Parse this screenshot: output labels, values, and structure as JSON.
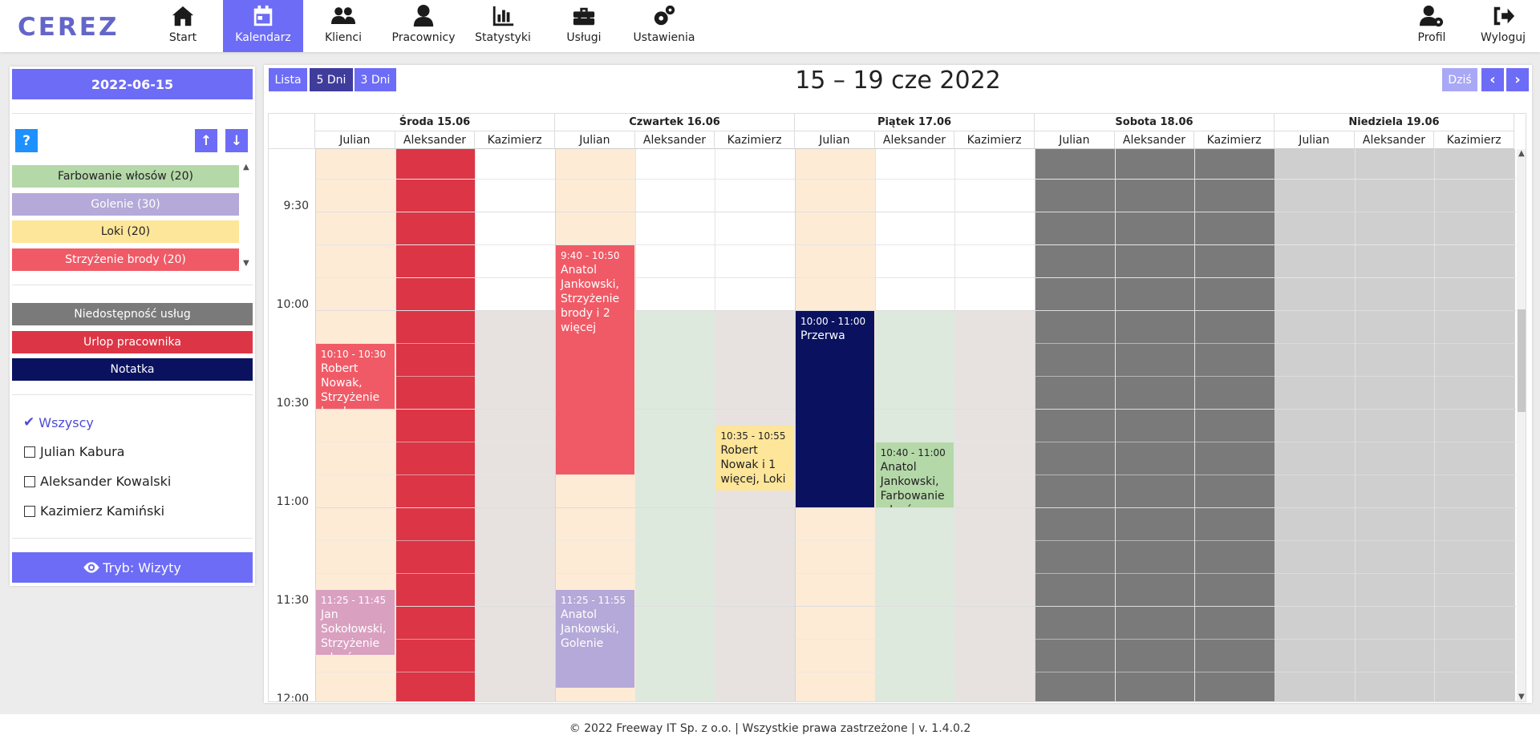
{
  "app": {
    "logo": "CEREZ"
  },
  "nav": {
    "items": [
      {
        "label": "Start",
        "icon": "home-icon"
      },
      {
        "label": "Kalendarz",
        "icon": "calendar-icon"
      },
      {
        "label": "Klienci",
        "icon": "users-icon"
      },
      {
        "label": "Pracownicy",
        "icon": "user-icon"
      },
      {
        "label": "Statystyki",
        "icon": "chart-icon"
      },
      {
        "label": "Usługi",
        "icon": "toolbox-icon"
      },
      {
        "label": "Ustawienia",
        "icon": "gears-icon"
      }
    ],
    "right": [
      {
        "label": "Profil",
        "icon": "user-gear-icon"
      },
      {
        "label": "Wyloguj",
        "icon": "logout-icon"
      }
    ]
  },
  "sidebar": {
    "date": "2022-06-15",
    "help": "?",
    "services": [
      {
        "label": "Farbowanie włosów (20)",
        "color": "#b5d8a9"
      },
      {
        "label": "Golenie (30)",
        "color": "#b4a9d8"
      },
      {
        "label": "Loki (20)",
        "color": "#fde59a"
      },
      {
        "label": "Strzyżenie brody (20)",
        "color": "#f05a66"
      }
    ],
    "legend": [
      {
        "label": "Niedostępność usług",
        "color": "#7a7a7a"
      },
      {
        "label": "Urlop pracownika",
        "color": "#dc3545"
      },
      {
        "label": "Notatka",
        "color": "#0a1260"
      }
    ],
    "employees": [
      {
        "label": "Wszyscy",
        "selected": true
      },
      {
        "label": "Julian Kabura",
        "selected": false
      },
      {
        "label": "Aleksander Kowalski",
        "selected": false
      },
      {
        "label": "Kazimierz Kamiński",
        "selected": false
      }
    ],
    "mode": "Tryb: Wizyty"
  },
  "calendar": {
    "views": [
      "Lista",
      "5 Dni",
      "3 Dni"
    ],
    "active_view": "5 Dni",
    "title": "15 – 19 cze 2022",
    "today": "Dziś",
    "days": [
      {
        "label": "Środa 15.06"
      },
      {
        "label": "Czwartek 16.06"
      },
      {
        "label": "Piątek 17.06"
      },
      {
        "label": "Sobota 18.06"
      },
      {
        "label": "Niedziela 19.06"
      }
    ],
    "employees": [
      "Julian",
      "Aleksander",
      "Kazimierz"
    ],
    "times": [
      "9:30",
      "10:00",
      "10:30",
      "11:00",
      "11:30",
      "12:00"
    ],
    "events": [
      {
        "day": 0,
        "emp": 0,
        "time": "10:10 - 10:30",
        "text": "Robert Nowak, Strzyżenie brody",
        "color": "#f05a66",
        "fg": "#fff",
        "start": "10:10",
        "end": "10:30"
      },
      {
        "day": 0,
        "emp": 0,
        "time": "11:25 - 11:45",
        "text": "Jan Sokołowski, Strzyżenie włosów",
        "color": "#d9a0c0",
        "fg": "#fff",
        "start": "11:25",
        "end": "11:45"
      },
      {
        "day": 1,
        "emp": 0,
        "time": "9:40 - 10:50",
        "text": "Anatol Jankowski, Strzyżenie brody i 2 więcej",
        "color": "#f05a66",
        "fg": "#fff",
        "start": "9:40",
        "end": "10:50"
      },
      {
        "day": 1,
        "emp": 0,
        "time": "11:25 - 11:55",
        "text": "Anatol Jankowski, Golenie",
        "color": "#b4a9d8",
        "fg": "#fff",
        "start": "11:25",
        "end": "11:55"
      },
      {
        "day": 1,
        "emp": 2,
        "time": "10:35 - 10:55",
        "text": "Robert Nowak i 1 więcej, Loki",
        "color": "#fde59a",
        "fg": "#222",
        "start": "10:35",
        "end": "10:55"
      },
      {
        "day": 2,
        "emp": 0,
        "time": "10:00 - 11:00",
        "text": "Przerwa",
        "color": "#0a1260",
        "fg": "#fff",
        "start": "10:00",
        "end": "11:00"
      },
      {
        "day": 2,
        "emp": 1,
        "time": "10:40 - 11:00",
        "text": "Anatol Jankowski, Farbowanie włosów",
        "color": "#b5d8a9",
        "fg": "#222",
        "start": "10:40",
        "end": "11:00"
      }
    ]
  },
  "footer": "© 2022 Freeway IT Sp. z o.o. | Wszystkie prawa zastrzeżone | v. 1.4.0.2"
}
